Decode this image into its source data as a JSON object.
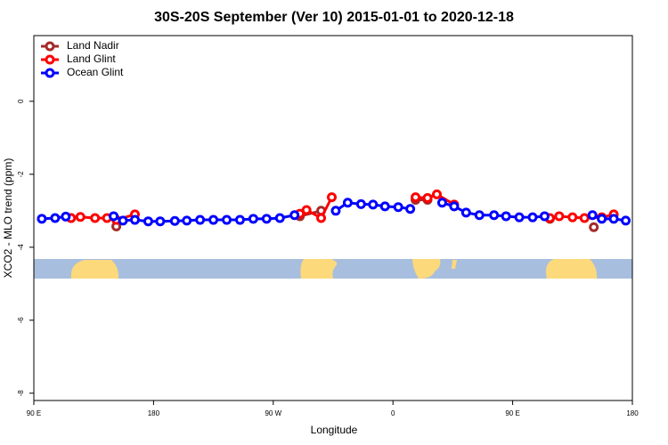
{
  "chart_data": {
    "type": "line",
    "title": "30S-20S September (Ver 10)   2015-01-01 to 2020-12-18",
    "xlabel": "Longitude",
    "ylabel": "XCO2 - MLO trend (ppm)",
    "xlim": [
      90,
      540
    ],
    "ylim": [
      -8.2,
      1.8
    ],
    "xticks": [
      {
        "value": 90,
        "label": "90 E"
      },
      180,
      {
        "value": 270,
        "label": "90 W"
      },
      {
        "value": 360,
        "label": "0"
      },
      {
        "value": 450,
        "label": "90 E"
      },
      {
        "value": 540,
        "label": "180"
      }
    ],
    "yticks": [
      0,
      -2,
      -4,
      -6,
      -8
    ],
    "legend": "top-left",
    "series": [
      {
        "name": "Land Nadir",
        "color": "#a52a2a",
        "x": [
          118,
          135,
          152,
          220,
          290,
          306,
          340,
          377,
          386,
          430,
          478,
          495,
          511
        ],
        "values": [
          -3.2,
          null,
          -3.43,
          null,
          -3.15,
          -3.0,
          null,
          -2.7,
          -2.7,
          null,
          -3.22,
          null,
          -3.45
        ]
      },
      {
        "name": "Land Glint",
        "color": "#ff0000",
        "x": [
          118,
          125,
          136,
          145,
          152,
          166,
          220,
          290,
          295,
          306,
          314,
          340,
          377,
          386,
          393,
          406,
          440,
          478,
          485,
          495,
          504,
          517,
          526
        ],
        "values": [
          -3.2,
          -3.17,
          -3.2,
          -3.2,
          -3.25,
          -3.1,
          null,
          -3.08,
          -2.98,
          -3.2,
          -2.63,
          null,
          -2.63,
          -2.65,
          -2.55,
          -2.83,
          null,
          -3.2,
          -3.15,
          -3.18,
          -3.2,
          -3.18,
          -3.1
        ]
      },
      {
        "name": "Ocean Glint",
        "color": "#0000ff",
        "x": [
          96,
          106,
          114,
          130,
          150,
          157,
          166,
          176,
          185,
          196,
          205,
          215,
          225,
          235,
          245,
          255,
          265,
          275,
          286,
          300,
          317,
          326,
          336,
          345,
          354,
          364,
          373,
          385,
          397,
          406,
          415,
          425,
          436,
          445,
          455,
          465,
          474,
          490,
          510,
          517,
          526,
          535
        ],
        "values": [
          -3.22,
          -3.2,
          -3.16,
          null,
          -3.15,
          -3.27,
          -3.25,
          -3.29,
          -3.29,
          -3.28,
          -3.27,
          -3.25,
          -3.25,
          -3.25,
          -3.25,
          -3.22,
          -3.22,
          -3.2,
          -3.12,
          null,
          -3.0,
          -2.78,
          -2.82,
          -2.83,
          -2.88,
          -2.9,
          -2.95,
          null,
          -2.78,
          -2.88,
          -3.05,
          -3.12,
          -3.12,
          -3.15,
          -3.18,
          -3.18,
          -3.15,
          null,
          -3.12,
          -3.22,
          -3.22,
          -3.27
        ]
      }
    ]
  }
}
